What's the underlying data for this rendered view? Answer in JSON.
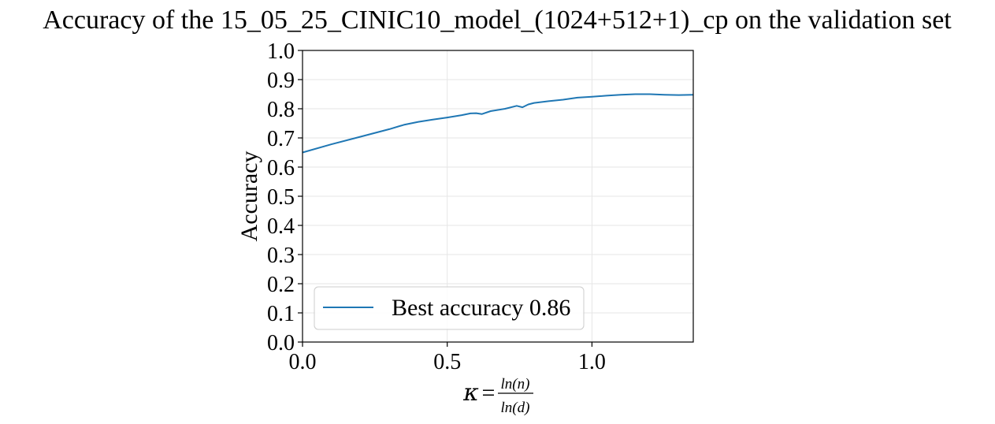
{
  "chart_data": {
    "type": "line",
    "title": "Accuracy of the 15_05_25_CINIC10_model_(1024+512+1)_cp on the validation set",
    "xlabel": {
      "kappa": "κ",
      "equals": "=",
      "numerator": "ln(n)",
      "denominator": "ln(d)"
    },
    "ylabel": "Accuracy",
    "xlim": [
      0.0,
      1.35
    ],
    "ylim": [
      0.0,
      1.0
    ],
    "xticks": [
      0.0,
      0.5,
      1.0
    ],
    "xtick_labels": [
      "0.0",
      "0.5",
      "1.0"
    ],
    "yticks": [
      0.0,
      0.1,
      0.2,
      0.3,
      0.4,
      0.5,
      0.6,
      0.7,
      0.8,
      0.9,
      1.0
    ],
    "ytick_labels": [
      "0.0",
      "0.1",
      "0.2",
      "0.3",
      "0.4",
      "0.5",
      "0.6",
      "0.7",
      "0.8",
      "0.9",
      "1.0"
    ],
    "grid": true,
    "legend_position": "lower-left",
    "series": [
      {
        "name": "Best accuracy 0.86",
        "color": "#1f77b4",
        "x": [
          0.0,
          0.1,
          0.2,
          0.3,
          0.35,
          0.4,
          0.45,
          0.5,
          0.55,
          0.58,
          0.6,
          0.62,
          0.65,
          0.7,
          0.74,
          0.76,
          0.78,
          0.8,
          0.85,
          0.9,
          0.95,
          1.0,
          1.05,
          1.1,
          1.15,
          1.2,
          1.25,
          1.3,
          1.35
        ],
        "y": [
          0.65,
          0.678,
          0.704,
          0.73,
          0.745,
          0.755,
          0.763,
          0.77,
          0.778,
          0.784,
          0.785,
          0.782,
          0.792,
          0.8,
          0.81,
          0.805,
          0.815,
          0.82,
          0.826,
          0.831,
          0.838,
          0.841,
          0.845,
          0.848,
          0.85,
          0.85,
          0.848,
          0.847,
          0.848
        ]
      }
    ]
  }
}
